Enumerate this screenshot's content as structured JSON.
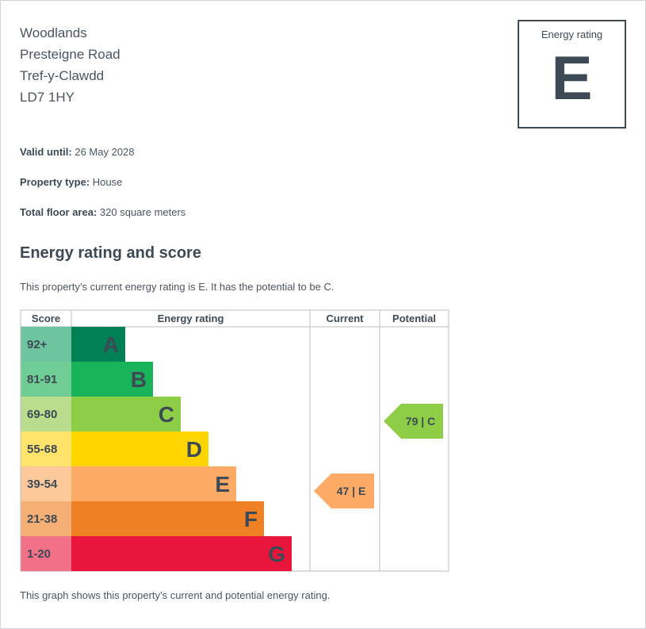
{
  "address": {
    "line1": "Woodlands",
    "line2": "Presteigne Road",
    "line3": "Tref-y-Clawdd",
    "postcode": "LD7 1HY"
  },
  "rating_box": {
    "label": "Energy rating",
    "band": "E"
  },
  "details": {
    "valid_until_label": "Valid until:",
    "valid_until": "26 May 2028",
    "property_type_label": "Property type:",
    "property_type": "House",
    "floor_area_label": "Total floor area:",
    "floor_area": "320 square meters"
  },
  "section_title": "Energy rating and score",
  "description": "This property’s current energy rating is E. It has the potential to be C.",
  "footer": "This graph shows this property’s current and potential energy rating.",
  "chart_data": {
    "type": "bar",
    "columns": [
      "Score",
      "Energy rating",
      "Current",
      "Potential"
    ],
    "bands": [
      {
        "letter": "A",
        "range": "92+",
        "color": "#008054",
        "score_color": "#6ec49e"
      },
      {
        "letter": "B",
        "range": "81-91",
        "color": "#19b459",
        "score_color": "#6fcc93"
      },
      {
        "letter": "C",
        "range": "69-80",
        "color": "#8dce46",
        "score_color": "#b9dd8c"
      },
      {
        "letter": "D",
        "range": "55-68",
        "color": "#ffd500",
        "score_color": "#ffe36a"
      },
      {
        "letter": "E",
        "range": "39-54",
        "color": "#fcaa65",
        "score_color": "#fdc89a"
      },
      {
        "letter": "F",
        "range": "21-38",
        "color": "#ef8023",
        "score_color": "#f5ae74"
      },
      {
        "letter": "G",
        "range": "1-20",
        "color": "#e9153b",
        "score_color": "#f27088"
      }
    ],
    "current": {
      "score": 47,
      "band": "E",
      "label": "47 | E",
      "color": "#fcaa65"
    },
    "potential": {
      "score": 79,
      "band": "C",
      "label": "79 | C",
      "color": "#8dce46"
    }
  }
}
